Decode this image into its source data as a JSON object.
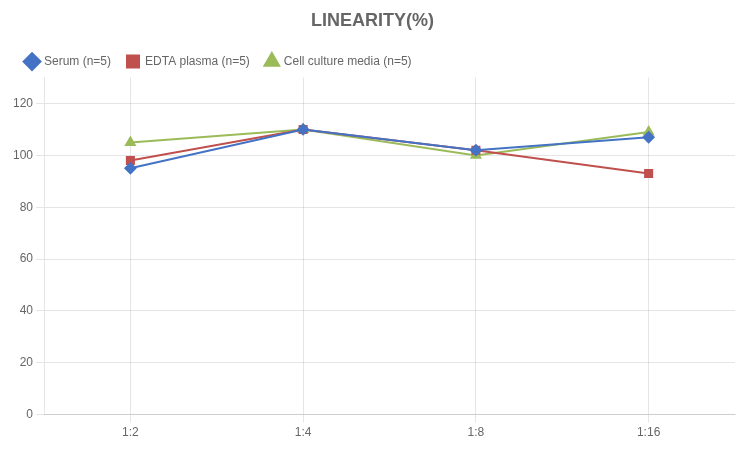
{
  "chart_data": {
    "type": "line",
    "title": "LINEARITY(%)",
    "categories": [
      "1:2",
      "1:4",
      "1:8",
      "1:16"
    ],
    "series": [
      {
        "name": "Serum (n=5)",
        "color": "#4472C4",
        "marker": "diamond",
        "values": [
          95,
          110,
          102,
          107
        ]
      },
      {
        "name": "EDTA plasma (n=5)",
        "color": "#C0504D",
        "marker": "square",
        "values": [
          98,
          110,
          102,
          93
        ]
      },
      {
        "name": "Cell culture media (n=5)",
        "color": "#9BBB59",
        "marker": "triangle",
        "values": [
          105,
          110,
          100,
          109
        ]
      }
    ],
    "ylim": [
      0,
      130
    ],
    "yticks": [
      0,
      20,
      40,
      60,
      80,
      100,
      120
    ],
    "grid": true,
    "legend": "upper left"
  }
}
